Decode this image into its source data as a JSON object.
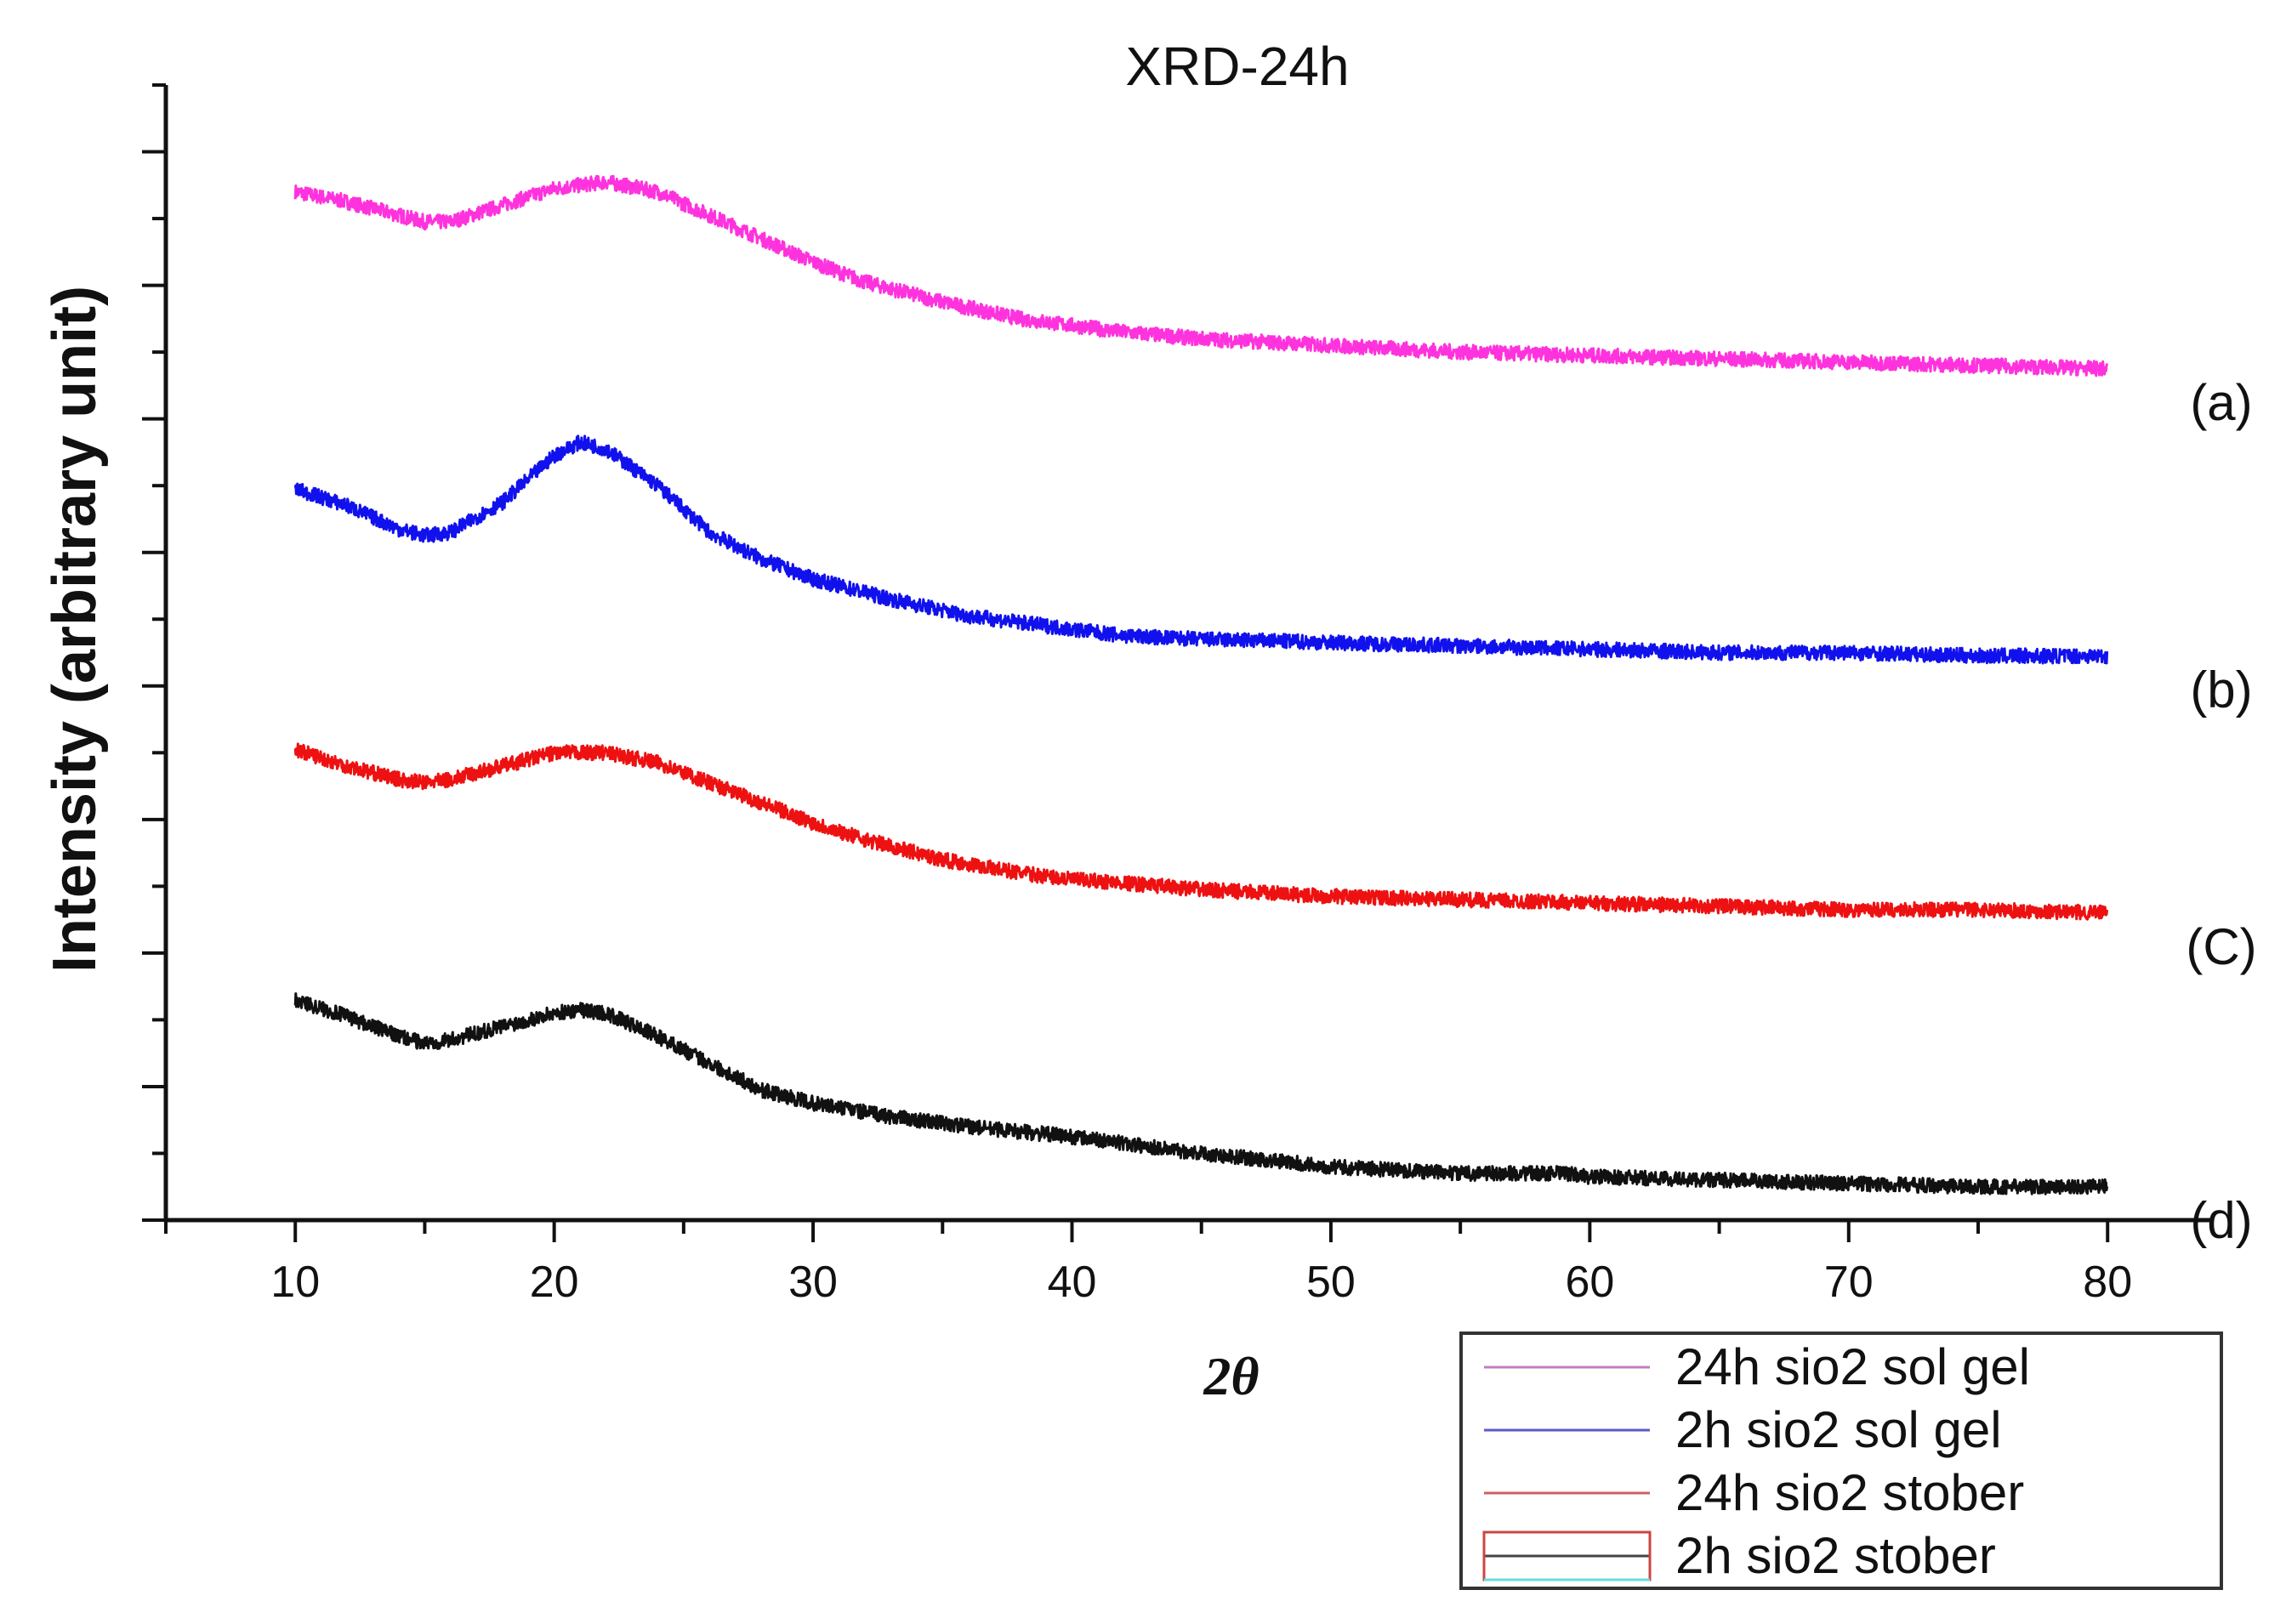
{
  "chart_data": {
    "type": "line",
    "title": "XRD-24h",
    "xlabel": "2θ",
    "ylabel": "Intensity (arbitrary unit)",
    "xlim": [
      5,
      84
    ],
    "ylim": [
      0,
      17
    ],
    "x_ticks": [
      10,
      20,
      30,
      40,
      50,
      60,
      70,
      80
    ],
    "y_tick_labels": "none",
    "series": [
      {
        "name": "24h sio2 sol gel",
        "label": "(a)",
        "color": "#ff33dd",
        "x": [
          10,
          12,
          14,
          15,
          16,
          18,
          20,
          22,
          24,
          26,
          28,
          30,
          32,
          35,
          38,
          40,
          42,
          45,
          50,
          55,
          60,
          65,
          70,
          75,
          80
        ],
        "y": [
          15.4,
          15.25,
          15.05,
          14.95,
          14.95,
          15.2,
          15.45,
          15.55,
          15.4,
          15.05,
          14.7,
          14.35,
          14.05,
          13.75,
          13.5,
          13.4,
          13.3,
          13.2,
          13.1,
          13.0,
          12.95,
          12.9,
          12.85,
          12.8,
          12.75
        ]
      },
      {
        "name": "2h sio2 sol gel",
        "label": "(b)",
        "color": "#1111ee",
        "x": [
          10,
          12,
          14,
          15,
          16,
          18,
          20,
          21,
          22,
          24,
          26,
          28,
          30,
          33,
          36,
          40,
          42,
          45,
          50,
          55,
          60,
          65,
          70,
          75,
          80
        ],
        "y": [
          10.95,
          10.7,
          10.35,
          10.25,
          10.3,
          10.75,
          11.45,
          11.65,
          11.55,
          11.0,
          10.3,
          9.9,
          9.6,
          9.3,
          9.05,
          8.85,
          8.75,
          8.7,
          8.65,
          8.6,
          8.55,
          8.5,
          8.5,
          8.45,
          8.45
        ]
      },
      {
        "name": "24h sio2 stober",
        "label": "(C)",
        "color": "#ee1111",
        "x": [
          10,
          12,
          14,
          15,
          16,
          18,
          20,
          22,
          24,
          26,
          28,
          30,
          32,
          35,
          38,
          40,
          42,
          45,
          50,
          55,
          60,
          65,
          70,
          75,
          80
        ],
        "y": [
          7.05,
          6.8,
          6.6,
          6.55,
          6.6,
          6.8,
          7.0,
          7.0,
          6.85,
          6.55,
          6.25,
          5.95,
          5.7,
          5.4,
          5.2,
          5.1,
          5.05,
          4.95,
          4.85,
          4.8,
          4.75,
          4.7,
          4.65,
          4.65,
          4.6
        ]
      },
      {
        "name": "2h sio2 stober",
        "label": "(d)",
        "color": "#111111",
        "x": [
          10,
          12,
          14,
          15,
          16,
          18,
          20,
          21,
          22,
          24,
          26,
          28,
          30,
          33,
          36,
          40,
          42,
          45,
          50,
          55,
          59,
          60,
          65,
          70,
          75,
          80
        ],
        "y": [
          3.3,
          3.05,
          2.75,
          2.65,
          2.7,
          2.9,
          3.1,
          3.15,
          3.1,
          2.75,
          2.35,
          1.95,
          1.75,
          1.55,
          1.4,
          1.25,
          1.15,
          1.0,
          0.8,
          0.7,
          0.7,
          0.65,
          0.6,
          0.55,
          0.5,
          0.5
        ]
      }
    ],
    "legend": {
      "placement": "bottom-right, below plot",
      "entries": [
        "24h sio2 sol gel",
        "2h sio2 sol gel",
        "24h sio2 stober",
        "2h sio2 stober"
      ],
      "colors": [
        "#c080c0",
        "#5a5acc",
        "#d06060",
        "#444444"
      ]
    }
  }
}
